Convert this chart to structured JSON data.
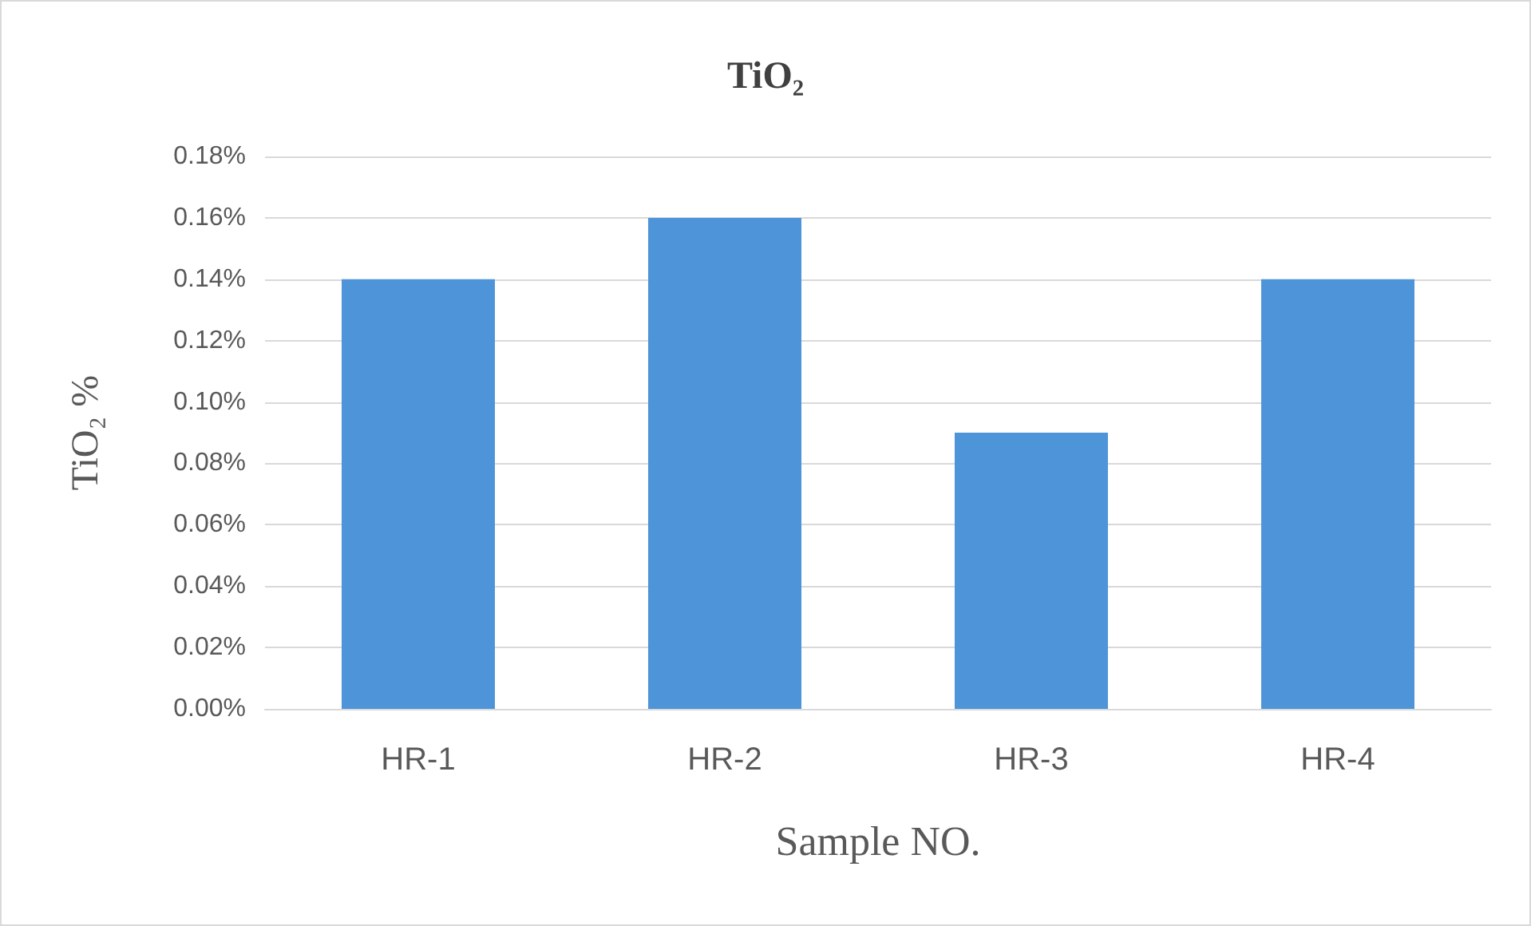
{
  "chart_data": {
    "type": "bar",
    "title": "TiO₂",
    "xlabel": "Sample NO.",
    "ylabel": "TiO₂ %",
    "categories": [
      "HR-1",
      "HR-2",
      "HR-3",
      "HR-4"
    ],
    "values": [
      0.14,
      0.16,
      0.09,
      0.14
    ],
    "color": "#4e94d8",
    "ylim": [
      0,
      0.18
    ],
    "yticks": [
      {
        "value": 0,
        "label": "0.00%"
      },
      {
        "value": 0.02,
        "label": "0.02%"
      },
      {
        "value": 0.04,
        "label": "0.04%"
      },
      {
        "value": 0.06,
        "label": "0.06%"
      },
      {
        "value": 0.08,
        "label": "0.08%"
      },
      {
        "value": 0.1,
        "label": "0.10%"
      },
      {
        "value": 0.12,
        "label": "0.12%"
      },
      {
        "value": 0.14,
        "label": "0.14%"
      },
      {
        "value": 0.16,
        "label": "0.16%"
      },
      {
        "value": 0.18,
        "label": "0.18%"
      }
    ],
    "grid": true
  }
}
